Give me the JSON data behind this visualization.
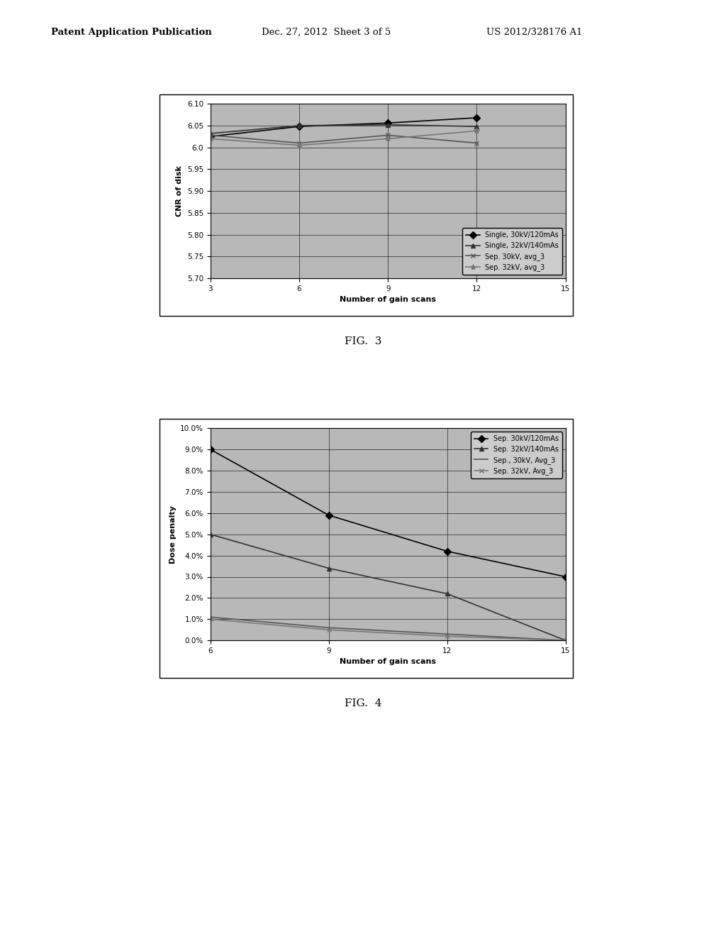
{
  "fig3": {
    "xlabel": "Number of gain scans",
    "ylabel": "CNR of disk",
    "xlim": [
      3,
      15
    ],
    "ylim": [
      5.7,
      6.1
    ],
    "yticks": [
      5.7,
      5.75,
      5.8,
      5.85,
      5.9,
      5.95,
      6.0,
      6.05,
      6.1
    ],
    "xticks": [
      3,
      6,
      9,
      12,
      15
    ],
    "series": [
      {
        "label": "Single, 30kV/120mAs",
        "x": [
          3,
          6,
          9,
          12
        ],
        "y": [
          6.025,
          6.048,
          6.056,
          6.068
        ],
        "marker": "D",
        "linestyle": "-",
        "color": "#000000",
        "markersize": 5
      },
      {
        "label": "Single, 32kV/140mAs",
        "x": [
          3,
          6,
          9,
          12
        ],
        "y": [
          6.032,
          6.05,
          6.052,
          6.048
        ],
        "marker": "^",
        "linestyle": "-",
        "color": "#333333",
        "markersize": 5
      },
      {
        "label": "Sep. 30kV, avg_3",
        "x": [
          3,
          6,
          9,
          12
        ],
        "y": [
          6.028,
          6.01,
          6.028,
          6.01
        ],
        "marker": "x",
        "linestyle": "-",
        "color": "#555555",
        "markersize": 5
      },
      {
        "label": "Sep. 32kV, avg_3",
        "x": [
          3,
          6,
          9,
          12
        ],
        "y": [
          6.02,
          6.005,
          6.02,
          6.038
        ],
        "marker": "*",
        "linestyle": "-",
        "color": "#777777",
        "markersize": 6
      }
    ],
    "legend_loc": "lower right",
    "bg_color": "#b8b8b8"
  },
  "fig4": {
    "xlabel": "Number of gain scans",
    "ylabel": "Dose penalty",
    "xlim": [
      6,
      15
    ],
    "ylim": [
      0.0,
      0.1
    ],
    "yticks": [
      0.0,
      0.01,
      0.02,
      0.03,
      0.04,
      0.05,
      0.06,
      0.07,
      0.08,
      0.09,
      0.1
    ],
    "xticks": [
      6,
      9,
      12,
      15
    ],
    "series": [
      {
        "label": "Sep. 30kV/120mAs",
        "x": [
          6,
          9,
          12,
          15
        ],
        "y": [
          0.09,
          0.059,
          0.042,
          0.03
        ],
        "marker": "D",
        "linestyle": "-",
        "color": "#000000",
        "markersize": 5
      },
      {
        "label": "Sep. 32kV/140mAs",
        "x": [
          6,
          9,
          12,
          15
        ],
        "y": [
          0.05,
          0.034,
          0.022,
          0.0
        ],
        "marker": "^",
        "linestyle": "-",
        "color": "#333333",
        "markersize": 5
      },
      {
        "label": "Sep., 30kV, Avg_3",
        "x": [
          6,
          9,
          12,
          15
        ],
        "y": [
          0.011,
          0.006,
          0.003,
          0.0
        ],
        "marker": "none",
        "linestyle": "-",
        "color": "#555555",
        "markersize": 0
      },
      {
        "label": "Sep. 32kV, Avg_3",
        "x": [
          6,
          9,
          12,
          15
        ],
        "y": [
          0.01,
          0.005,
          0.002,
          0.0
        ],
        "marker": "x",
        "linestyle": "-",
        "color": "#777777",
        "markersize": 5
      }
    ],
    "legend_loc": "upper right",
    "bg_color": "#b8b8b8"
  },
  "page_bg": "#e8e8e8",
  "header_left": "Patent Application Publication",
  "header_mid": "Dec. 27, 2012  Sheet 3 of 5",
  "header_right": "US 2012/328176 A1",
  "fig3_caption": "FIG.  3",
  "fig4_caption": "FIG.  4"
}
